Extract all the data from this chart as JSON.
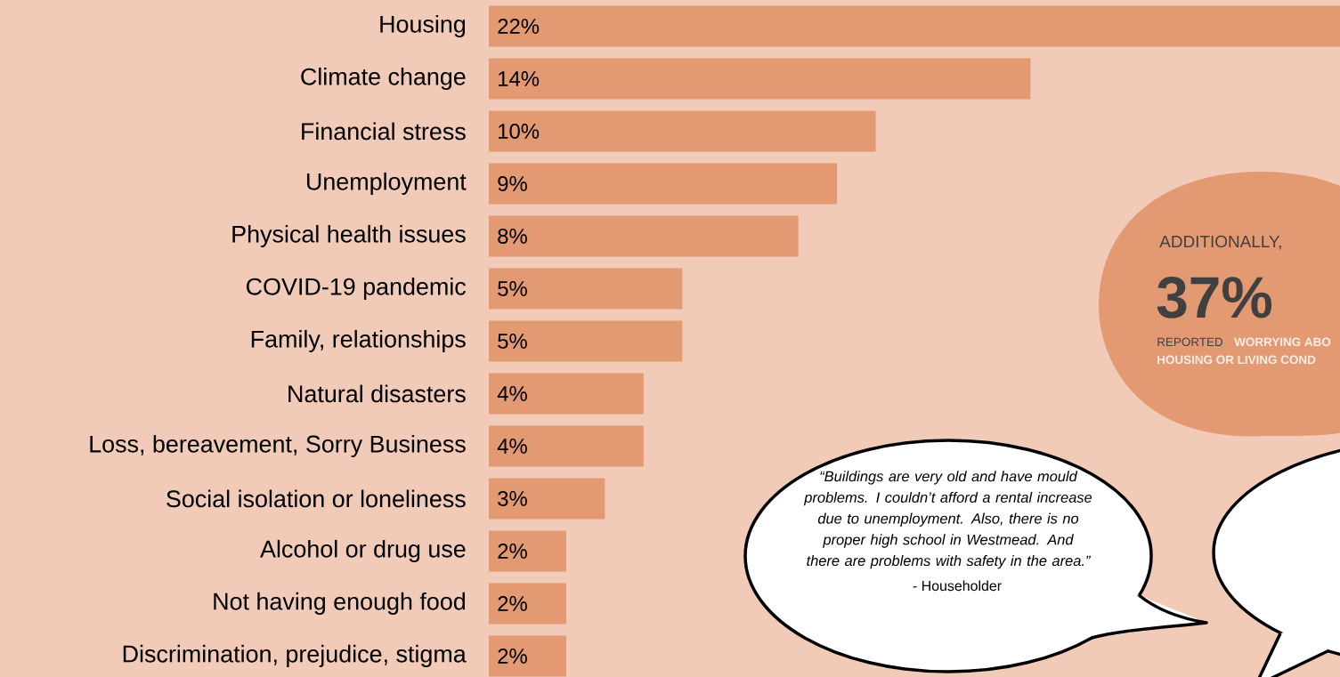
{
  "chart_data": {
    "type": "bar",
    "orientation": "horizontal",
    "color": "#e39a72",
    "categories": [
      "Housing",
      "Climate change",
      "Financial stress",
      "Unemployment",
      "Physical health issues",
      "COVID-19 pandemic",
      "Family, relationships",
      "Natural disasters",
      "Loss, bereavement, Sorry Business",
      "Social isolation or loneliness",
      "Alcohol or drug use",
      "Not having enough food",
      "Discrimination, prejudice, stigma"
    ],
    "values": [
      22,
      14,
      10,
      9,
      8,
      5,
      5,
      4,
      4,
      3,
      2,
      2,
      2
    ],
    "value_labels": [
      "22%",
      "14%",
      "10%",
      "9%",
      "8%",
      "5%",
      "5%",
      "4%",
      "4%",
      "3%",
      "2%",
      "2%",
      "2%"
    ],
    "annotations": [
      "ADDITIONALLY,",
      "37%",
      "REPORTED",
      "WORRYING ABO",
      "HOUSING OR LIVING COND",
      "“Buildings are very old and have mould problems.  I couldn’t afford a rental increase due to unemployment. Also, there is no proper high school in Westmead. And there are problems with safety in the area.”",
      "- Householder"
    ]
  }
}
